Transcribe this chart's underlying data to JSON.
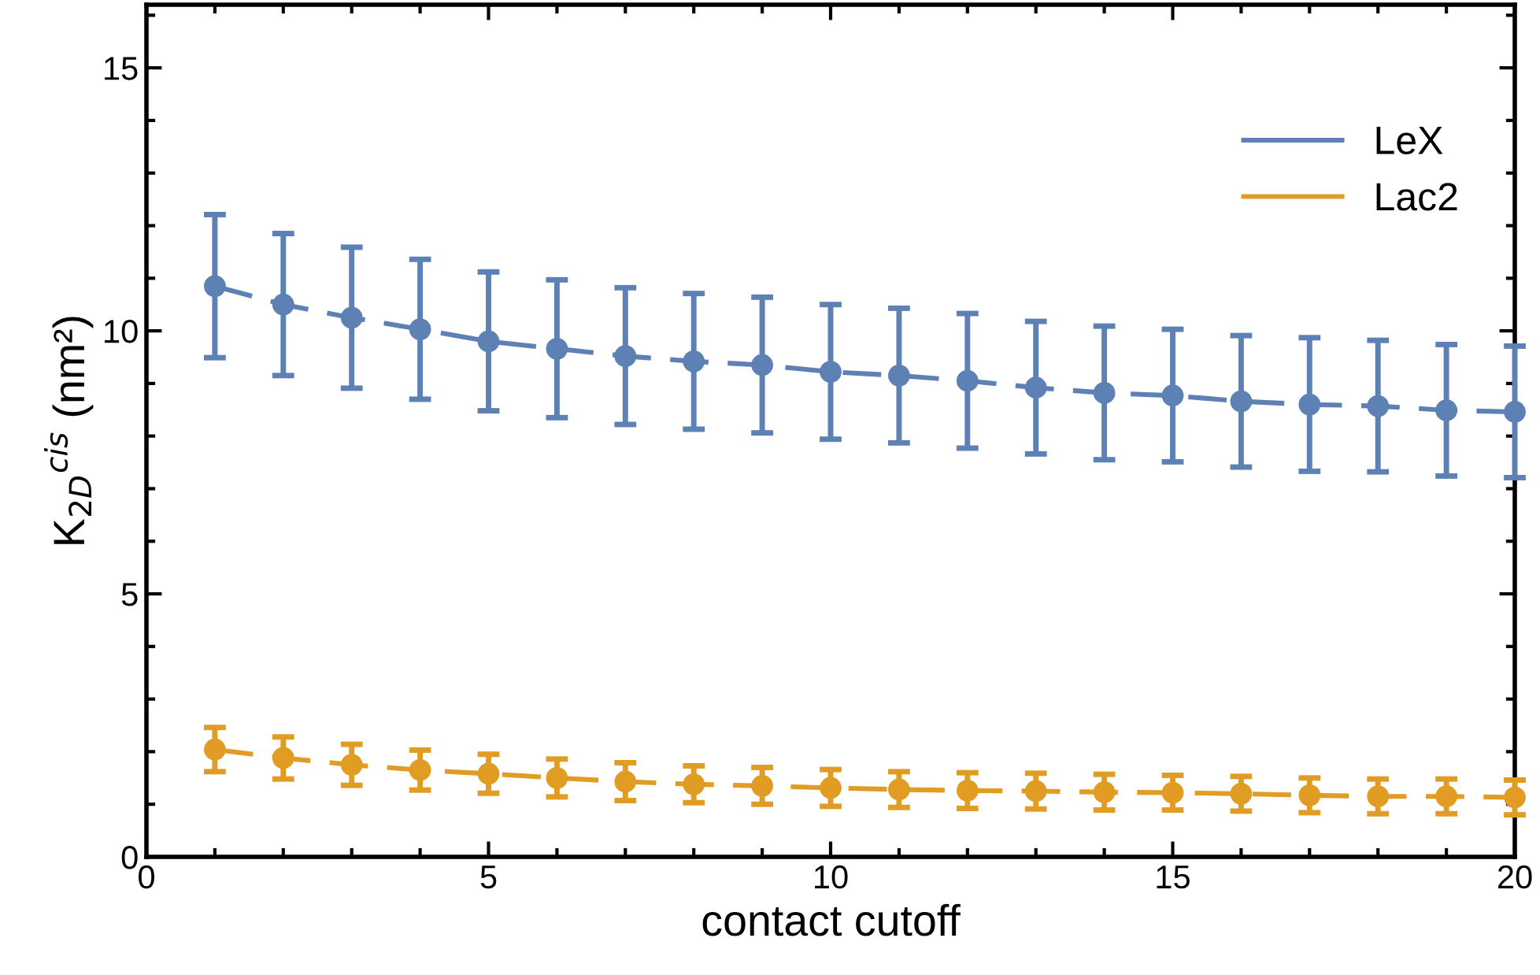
{
  "chart_data": {
    "type": "line",
    "xlabel": "contact cutoff",
    "ylabel": "K$_{2D}$$^{cis}$ (nm²)",
    "x": [
      1,
      2,
      3,
      4,
      5,
      6,
      7,
      8,
      9,
      10,
      11,
      12,
      13,
      14,
      15,
      16,
      17,
      18,
      19,
      20
    ],
    "series": [
      {
        "name": "LeX",
        "color": "#5e81b5",
        "values": [
          10.85,
          10.5,
          10.25,
          10.03,
          9.8,
          9.66,
          9.52,
          9.42,
          9.35,
          9.22,
          9.15,
          9.05,
          8.92,
          8.82,
          8.77,
          8.66,
          8.6,
          8.57,
          8.49,
          8.46
        ],
        "errors": [
          1.36,
          1.35,
          1.34,
          1.33,
          1.32,
          1.31,
          1.3,
          1.29,
          1.29,
          1.28,
          1.28,
          1.28,
          1.26,
          1.27,
          1.26,
          1.25,
          1.27,
          1.25,
          1.25,
          1.25
        ]
      },
      {
        "name": "Lac2",
        "color": "#e19c24",
        "values": [
          2.04,
          1.88,
          1.75,
          1.65,
          1.58,
          1.5,
          1.43,
          1.38,
          1.35,
          1.31,
          1.28,
          1.26,
          1.25,
          1.23,
          1.22,
          1.2,
          1.17,
          1.15,
          1.15,
          1.13
        ],
        "errors": [
          0.42,
          0.4,
          0.39,
          0.38,
          0.37,
          0.36,
          0.36,
          0.35,
          0.35,
          0.35,
          0.34,
          0.34,
          0.34,
          0.34,
          0.33,
          0.33,
          0.33,
          0.33,
          0.33,
          0.33
        ]
      }
    ],
    "xlim": [
      0,
      20
    ],
    "xticks": [
      0,
      5,
      10,
      15,
      20
    ],
    "ylim": [
      0,
      16.2
    ],
    "yticks": [
      0,
      5,
      10,
      15
    ],
    "marker": "circle",
    "line_style": "dashed",
    "legend": "top right",
    "grid": false
  }
}
